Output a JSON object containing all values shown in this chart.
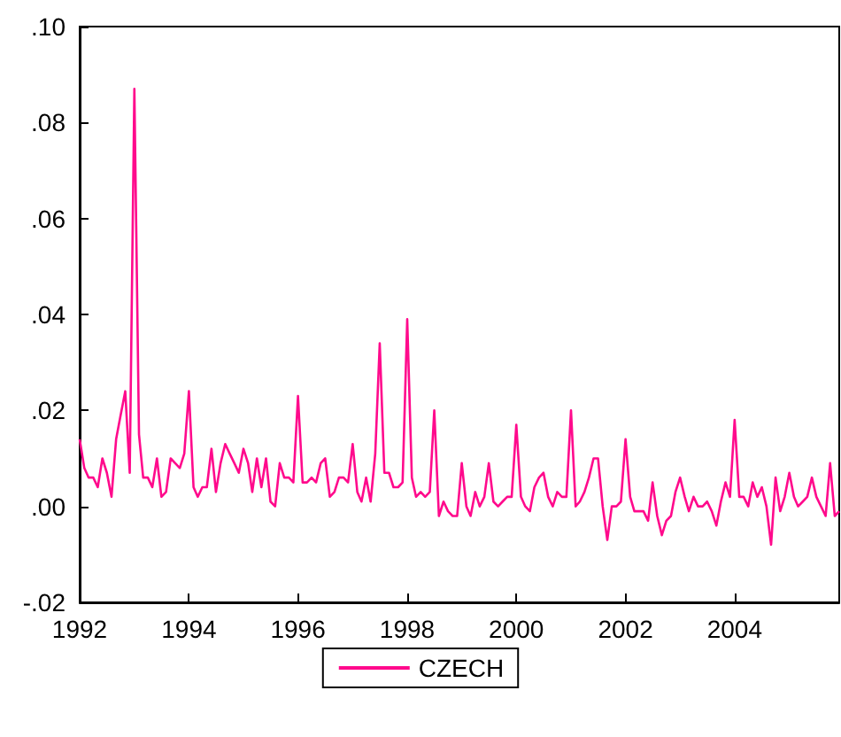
{
  "chart_data": {
    "type": "line",
    "x": [
      "1992-01",
      "1992-02",
      "1992-03",
      "1992-04",
      "1992-05",
      "1992-06",
      "1992-07",
      "1992-08",
      "1992-09",
      "1992-10",
      "1992-11",
      "1992-12",
      "1993-01",
      "1993-02",
      "1993-03",
      "1993-04",
      "1993-05",
      "1993-06",
      "1993-07",
      "1993-08",
      "1993-09",
      "1993-10",
      "1993-11",
      "1993-12",
      "1994-01",
      "1994-02",
      "1994-03",
      "1994-04",
      "1994-05",
      "1994-06",
      "1994-07",
      "1994-08",
      "1994-09",
      "1994-10",
      "1994-11",
      "1994-12",
      "1995-01",
      "1995-02",
      "1995-03",
      "1995-04",
      "1995-05",
      "1995-06",
      "1995-07",
      "1995-08",
      "1995-09",
      "1995-10",
      "1995-11",
      "1995-12",
      "1996-01",
      "1996-02",
      "1996-03",
      "1996-04",
      "1996-05",
      "1996-06",
      "1996-07",
      "1996-08",
      "1996-09",
      "1996-10",
      "1996-11",
      "1996-12",
      "1997-01",
      "1997-02",
      "1997-03",
      "1997-04",
      "1997-05",
      "1997-06",
      "1997-07",
      "1997-08",
      "1997-09",
      "1997-10",
      "1997-11",
      "1997-12",
      "1998-01",
      "1998-02",
      "1998-03",
      "1998-04",
      "1998-05",
      "1998-06",
      "1998-07",
      "1998-08",
      "1998-09",
      "1998-10",
      "1998-11",
      "1998-12",
      "1999-01",
      "1999-02",
      "1999-03",
      "1999-04",
      "1999-05",
      "1999-06",
      "1999-07",
      "1999-08",
      "1999-09",
      "1999-10",
      "1999-11",
      "1999-12",
      "2000-01",
      "2000-02",
      "2000-03",
      "2000-04",
      "2000-05",
      "2000-06",
      "2000-07",
      "2000-08",
      "2000-09",
      "2000-10",
      "2000-11",
      "2000-12",
      "2001-01",
      "2001-02",
      "2001-03",
      "2001-04",
      "2001-05",
      "2001-06",
      "2001-07",
      "2001-08",
      "2001-09",
      "2001-10",
      "2001-11",
      "2001-12",
      "2002-01",
      "2002-02",
      "2002-03",
      "2002-04",
      "2002-05",
      "2002-06",
      "2002-07",
      "2002-08",
      "2002-09",
      "2002-10",
      "2002-11",
      "2002-12",
      "2003-01",
      "2003-02",
      "2003-03",
      "2003-04",
      "2003-05",
      "2003-06",
      "2003-07",
      "2003-08",
      "2003-09",
      "2003-10",
      "2003-11",
      "2003-12",
      "2004-01",
      "2004-02",
      "2004-03",
      "2004-04",
      "2004-05",
      "2004-06",
      "2004-07",
      "2004-08",
      "2004-09",
      "2004-10",
      "2004-11",
      "2004-12",
      "2005-01",
      "2005-02",
      "2005-03",
      "2005-04",
      "2005-05",
      "2005-06",
      "2005-07",
      "2005-08",
      "2005-09",
      "2005-10",
      "2005-11",
      "2005-12"
    ],
    "series": [
      {
        "name": "CZECH",
        "color": "#ff0a8c",
        "values": [
          0.014,
          0.008,
          0.006,
          0.006,
          0.004,
          0.01,
          0.007,
          0.002,
          0.014,
          0.019,
          0.024,
          0.007,
          0.087,
          0.015,
          0.006,
          0.006,
          0.004,
          0.01,
          0.002,
          0.003,
          0.01,
          0.009,
          0.008,
          0.011,
          0.024,
          0.004,
          0.002,
          0.004,
          0.004,
          0.012,
          0.003,
          0.009,
          0.013,
          0.011,
          0.009,
          0.007,
          0.012,
          0.009,
          0.003,
          0.01,
          0.004,
          0.01,
          0.001,
          0.0,
          0.009,
          0.006,
          0.006,
          0.005,
          0.023,
          0.005,
          0.005,
          0.006,
          0.005,
          0.009,
          0.01,
          0.002,
          0.003,
          0.006,
          0.006,
          0.005,
          0.013,
          0.003,
          0.001,
          0.006,
          0.001,
          0.011,
          0.034,
          0.007,
          0.007,
          0.004,
          0.004,
          0.005,
          0.039,
          0.006,
          0.002,
          0.003,
          0.002,
          0.003,
          0.02,
          -0.002,
          0.001,
          -0.001,
          -0.002,
          -0.002,
          0.009,
          0.0,
          -0.002,
          0.003,
          0.0,
          0.002,
          0.009,
          0.001,
          0.0,
          0.001,
          0.002,
          0.002,
          0.017,
          0.002,
          0.0,
          -0.001,
          0.004,
          0.006,
          0.007,
          0.002,
          0.0,
          0.003,
          0.002,
          0.002,
          0.02,
          0.0,
          0.001,
          0.003,
          0.006,
          0.01,
          0.01,
          0.0,
          -0.007,
          0.0,
          0.0,
          0.001,
          0.014,
          0.002,
          -0.001,
          -0.001,
          -0.001,
          -0.003,
          0.005,
          -0.002,
          -0.006,
          -0.003,
          -0.002,
          0.003,
          0.006,
          0.002,
          -0.001,
          0.002,
          0.0,
          0.0,
          0.001,
          -0.001,
          -0.004,
          0.001,
          0.005,
          0.002,
          0.018,
          0.002,
          0.002,
          0.0,
          0.005,
          0.002,
          0.004,
          0.0,
          -0.008,
          0.006,
          -0.001,
          0.002,
          0.007,
          0.002,
          0.0,
          0.001,
          0.002,
          0.006,
          0.002,
          0.0,
          -0.002,
          0.009,
          -0.002,
          -0.001
        ]
      }
    ],
    "xlim": [
      "1992-01",
      "2005-12"
    ],
    "xticks": [
      {
        "value": "1992",
        "label": "1992"
      },
      {
        "value": "1994",
        "label": "1994"
      },
      {
        "value": "1996",
        "label": "1996"
      },
      {
        "value": "1998",
        "label": "1998"
      },
      {
        "value": "2000",
        "label": "2000"
      },
      {
        "value": "2002",
        "label": "2002"
      },
      {
        "value": "2004",
        "label": "2004"
      }
    ],
    "ylim": [
      -0.02,
      0.1
    ],
    "yticks": [
      {
        "value": -0.02,
        "label": "-.02"
      },
      {
        "value": 0,
        "label": ".00"
      },
      {
        "value": 0.02,
        "label": ".02"
      },
      {
        "value": 0.04,
        "label": ".04"
      },
      {
        "value": 0.06,
        "label": ".06"
      },
      {
        "value": 0.08,
        "label": ".08"
      },
      {
        "value": 0.1,
        "label": ".10"
      }
    ],
    "legend": "bottom",
    "grid": false,
    "marker": "none",
    "line_style": "solid"
  }
}
